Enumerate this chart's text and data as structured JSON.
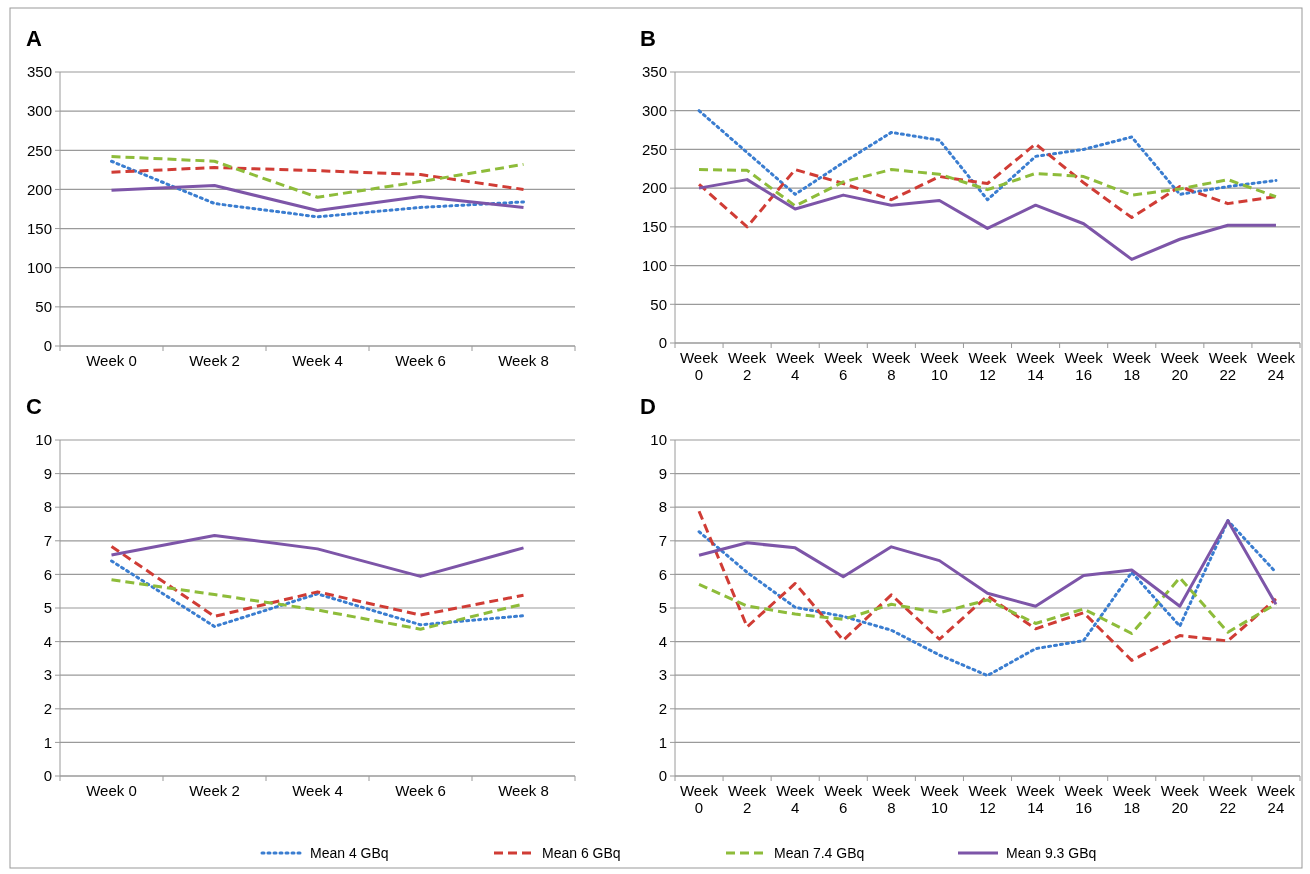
{
  "chart_data": [
    {
      "type": "line",
      "title": "A",
      "categories": [
        "Week 0",
        "Week 2",
        "Week 4",
        "Week 6",
        "Week 8"
      ],
      "ylim": [
        0,
        350
      ],
      "yticks": [
        0,
        50,
        100,
        150,
        200,
        250,
        300,
        350
      ],
      "grid": "y",
      "series": [
        {
          "color": "#3a7dd0",
          "line_style": "dotted",
          "values": [
            236,
            182,
            165,
            177,
            184
          ]
        },
        {
          "color": "#d03c35",
          "line_style": "dashed",
          "values": [
            222,
            228,
            224,
            219,
            200
          ]
        },
        {
          "color": "#8ebc3a",
          "line_style": "dashed",
          "values": [
            242,
            236,
            190,
            210,
            232
          ]
        },
        {
          "color": "#7d55a8",
          "line_style": "solid",
          "values": [
            199,
            205,
            173,
            191,
            177
          ]
        }
      ]
    },
    {
      "type": "line",
      "title": "B",
      "categories": [
        "Week 0",
        "Week 2",
        "Week 4",
        "Week 6",
        "Week 8",
        "Week 10",
        "Week 12",
        "Week 14",
        "Week 16",
        "Week 18",
        "Week 20",
        "Week 22",
        "Week 24"
      ],
      "ylim": [
        0,
        350
      ],
      "yticks": [
        0,
        50,
        100,
        150,
        200,
        250,
        300,
        350
      ],
      "grid": "y",
      "series": [
        {
          "color": "#3a7dd0",
          "line_style": "dotted",
          "values": [
            300,
            246,
            192,
            233,
            272,
            262,
            185,
            241,
            250,
            266,
            192,
            202,
            210
          ]
        },
        {
          "color": "#d03c35",
          "line_style": "dashed",
          "values": [
            205,
            150,
            224,
            206,
            185,
            215,
            206,
            257,
            207,
            162,
            202,
            180,
            189
          ]
        },
        {
          "color": "#8ebc3a",
          "line_style": "dashed",
          "values": [
            224,
            223,
            177,
            208,
            224,
            218,
            198,
            219,
            215,
            191,
            199,
            211,
            189
          ]
        },
        {
          "color": "#7d55a8",
          "line_style": "solid",
          "values": [
            200,
            211,
            173,
            191,
            178,
            184,
            148,
            178,
            154,
            108,
            134,
            152,
            152
          ]
        }
      ]
    },
    {
      "type": "line",
      "title": "C",
      "categories": [
        "Week 0",
        "Week 2",
        "Week 4",
        "Week 6",
        "Week 8"
      ],
      "ylim": [
        0,
        10
      ],
      "yticks": [
        0,
        1,
        2,
        3,
        4,
        5,
        6,
        7,
        8,
        9,
        10
      ],
      "grid": "y",
      "series": [
        {
          "color": "#3a7dd0",
          "line_style": "dotted",
          "values": [
            6.4,
            4.45,
            5.42,
            4.5,
            4.77
          ]
        },
        {
          "color": "#d03c35",
          "line_style": "dashed",
          "values": [
            6.83,
            4.75,
            5.48,
            4.79,
            5.38
          ]
        },
        {
          "color": "#8ebc3a",
          "line_style": "dashed",
          "values": [
            5.84,
            5.4,
            4.94,
            4.37,
            5.12
          ]
        },
        {
          "color": "#7d55a8",
          "line_style": "solid",
          "values": [
            6.58,
            7.16,
            6.76,
            5.94,
            6.79
          ]
        }
      ]
    },
    {
      "type": "line",
      "title": "D",
      "categories": [
        "Week 0",
        "Week 2",
        "Week 4",
        "Week 6",
        "Week 8",
        "Week 10",
        "Week 12",
        "Week 14",
        "Week 16",
        "Week 18",
        "Week 20",
        "Week 22",
        "Week 24"
      ],
      "ylim": [
        0,
        10
      ],
      "yticks": [
        0,
        1,
        2,
        3,
        4,
        5,
        6,
        7,
        8,
        9,
        10
      ],
      "grid": "y",
      "legend": "bottom",
      "series": [
        {
          "name": "Mean 4 GBq",
          "color": "#3a7dd0",
          "line_style": "dotted",
          "values": [
            7.27,
            6.06,
            5.02,
            4.75,
            4.34,
            3.6,
            2.99,
            3.79,
            4.03,
            6.06,
            4.46,
            7.6,
            6.06
          ]
        },
        {
          "name": "Mean 6 GBq",
          "color": "#d03c35",
          "line_style": "dashed",
          "values": [
            7.88,
            4.44,
            5.73,
            4.04,
            5.39,
            4.07,
            5.36,
            4.38,
            4.86,
            3.44,
            4.18,
            4.02,
            5.27
          ]
        },
        {
          "name": "Mean 7.4 GBq",
          "color": "#8ebc3a",
          "line_style": "dashed",
          "values": [
            5.7,
            5.06,
            4.82,
            4.66,
            5.11,
            4.86,
            5.24,
            4.54,
            4.97,
            4.24,
            5.9,
            4.28,
            5.12
          ]
        },
        {
          "name": "Mean 9.3 GBq",
          "color": "#7d55a8",
          "line_style": "solid",
          "values": [
            6.57,
            6.94,
            6.79,
            5.93,
            6.82,
            6.41,
            5.44,
            5.05,
            5.97,
            6.13,
            5.05,
            7.6,
            5.11
          ]
        }
      ]
    }
  ]
}
